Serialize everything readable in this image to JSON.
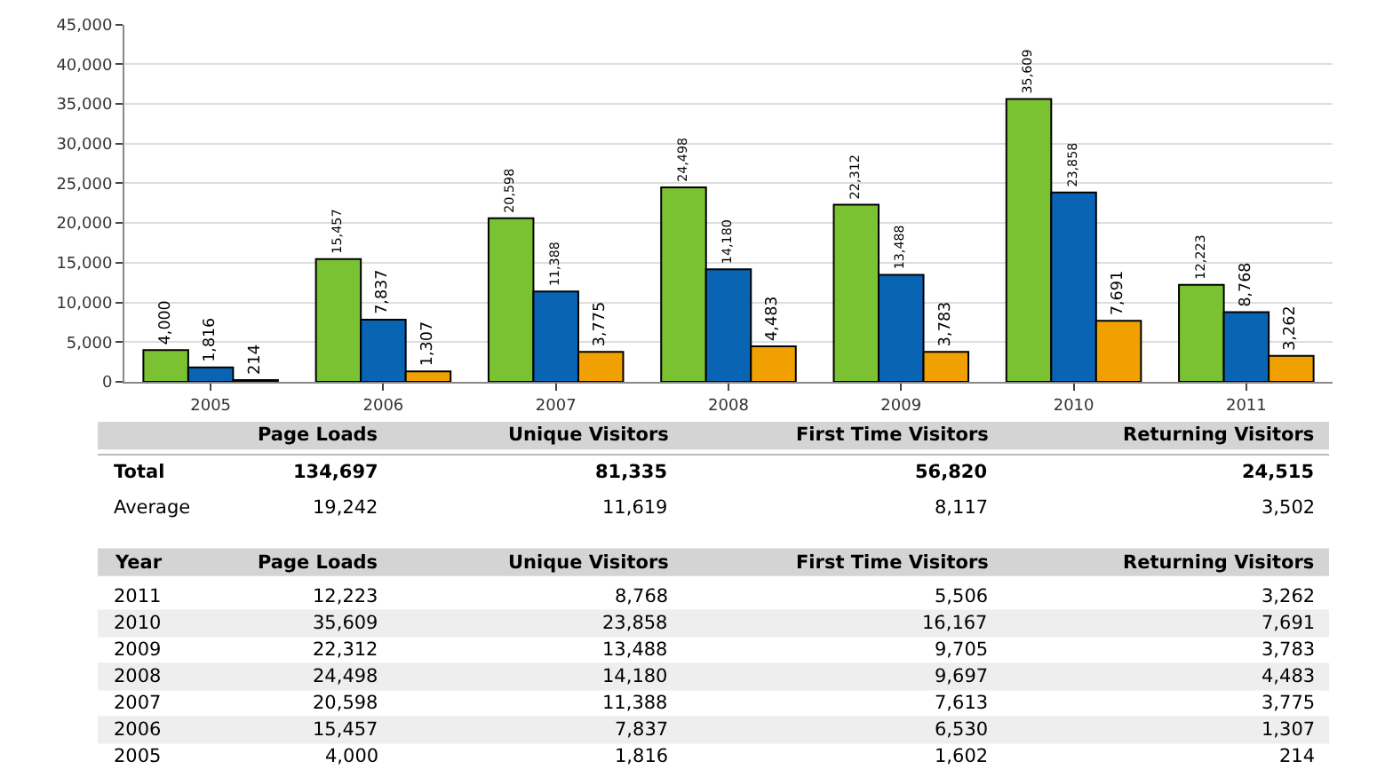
{
  "chart_data": {
    "type": "bar",
    "categories": [
      "2005",
      "2006",
      "2007",
      "2008",
      "2009",
      "2010",
      "2011"
    ],
    "series": [
      {
        "color": "#7ac231",
        "values": [
          4000,
          15457,
          20598,
          24498,
          22312,
          35609,
          12223
        ],
        "value_labels": [
          "4,000",
          "15,457",
          "20,598",
          "24,498",
          "22,312",
          "35,609",
          "12,223"
        ]
      },
      {
        "color": "#0a64b4",
        "values": [
          1816,
          7837,
          11388,
          14180,
          13488,
          23858,
          8768
        ],
        "value_labels": [
          "1,816",
          "7,837",
          "11,388",
          "14,180",
          "13,488",
          "23,858",
          "8,768"
        ]
      },
      {
        "color": "#f0a000",
        "values": [
          214,
          1307,
          3775,
          4483,
          3783,
          7691,
          3262
        ],
        "value_labels": [
          "214",
          "1,307",
          "3,775",
          "4,483",
          "3,783",
          "7,691",
          "3,262"
        ]
      }
    ],
    "ylim": [
      0,
      45000
    ],
    "yticks": [
      {
        "value": 0,
        "label": "0"
      },
      {
        "value": 5000,
        "label": "5,000"
      },
      {
        "value": 10000,
        "label": "10,000"
      },
      {
        "value": 15000,
        "label": "15,000"
      },
      {
        "value": 20000,
        "label": "20,000"
      },
      {
        "value": 25000,
        "label": "25,000"
      },
      {
        "value": 30000,
        "label": "30,000"
      },
      {
        "value": 35000,
        "label": "35,000"
      },
      {
        "value": 40000,
        "label": "40,000"
      },
      {
        "value": 45000,
        "label": "45,000"
      }
    ],
    "grid": "y",
    "legend": false,
    "annotations": [
      "Page Loads",
      "Unique Visitors",
      "First Time Visitors",
      "Returning Visitors",
      "Total",
      "134,697",
      "81,335",
      "56,820",
      "24,515",
      "Average",
      "19,242",
      "11,619",
      "8,117",
      "3,502",
      "Year",
      "Page Loads",
      "Unique Visitors",
      "First Time Visitors",
      "Returning Visitors",
      "2011",
      "12,223",
      "8,768",
      "5,506",
      "3,262",
      "2010",
      "35,609",
      "23,858",
      "16,167",
      "7,691",
      "2009",
      "22,312",
      "13,488",
      "9,705",
      "3,783",
      "2008",
      "24,498",
      "14,180",
      "9,697",
      "4,483",
      "2007",
      "20,598",
      "11,388",
      "7,613",
      "3,775",
      "2006",
      "15,457",
      "7,837",
      "6,530",
      "1,307",
      "2005",
      "4,000",
      "1,816",
      "1,602",
      "214"
    ]
  }
}
